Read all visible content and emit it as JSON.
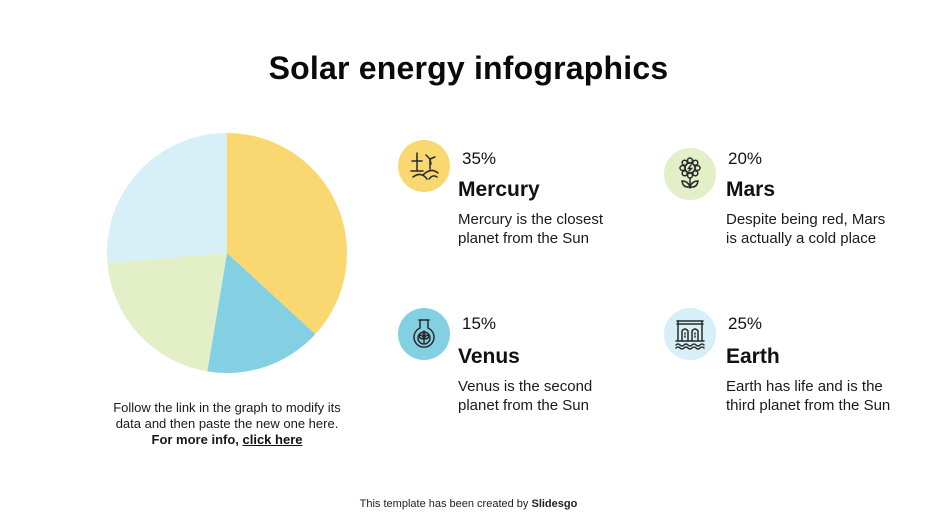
{
  "title": "Solar energy infographics",
  "colors": {
    "mercury": "#F9D771",
    "venus": "#83D0E3",
    "mars": "#E2EFC7",
    "earth": "#D7EFF6"
  },
  "items": [
    {
      "planet": "Mercury",
      "percent": "35%",
      "description": "Mercury is the closest planet from the Sun",
      "icon": "wind-turbine-icon"
    },
    {
      "planet": "Mars",
      "percent": "20%",
      "description": "Despite being red, Mars is actually a cold place",
      "icon": "flower-energy-icon"
    },
    {
      "planet": "Venus",
      "percent": "15%",
      "description": "Venus is the second planet from the Sun",
      "icon": "flask-leaf-icon"
    },
    {
      "planet": "Earth",
      "percent": "25%",
      "description": "Earth has life and is the third planet from the Sun",
      "icon": "dam-icon"
    }
  ],
  "note": {
    "line1": "Follow the link in the graph to modify its",
    "line2": "data and then paste the new one here.",
    "bold_prefix": "For more info, ",
    "link_text": "click here"
  },
  "footer": {
    "text": "This template has been created by ",
    "brand": "Slidesgo"
  },
  "chart_data": {
    "type": "pie",
    "title": "Solar energy infographics",
    "categories": [
      "Mercury",
      "Venus",
      "Mars",
      "Earth"
    ],
    "values": [
      35,
      15,
      20,
      25
    ],
    "colors": [
      "#F9D771",
      "#83D0E3",
      "#E2EFC7",
      "#D7EFF6"
    ],
    "start_angle": "12 o'clock",
    "direction": "clockwise",
    "legend": "none (labels in side infographic)"
  }
}
